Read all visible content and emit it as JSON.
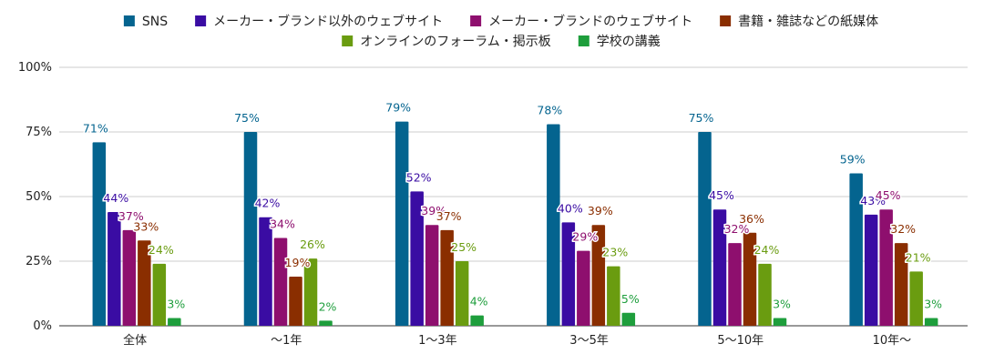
{
  "chart_data": {
    "type": "bar",
    "categories": [
      "全体",
      "〜1年",
      "1〜3年",
      "3〜5年",
      "5〜10年",
      "10年〜"
    ],
    "series": [
      {
        "name": "SNS",
        "color": "#04648f",
        "values": [
          71,
          75,
          79,
          78,
          75,
          59
        ]
      },
      {
        "name": "メーカー・ブランド以外のウェブサイト",
        "color": "#3a0ca3",
        "values": [
          44,
          42,
          52,
          40,
          45,
          43
        ]
      },
      {
        "name": "メーカー・ブランドのウェブサイト",
        "color": "#8e0f6e",
        "values": [
          37,
          34,
          39,
          29,
          32,
          45
        ]
      },
      {
        "name": "書籍・雑誌などの紙媒体",
        "color": "#8a2e00",
        "values": [
          33,
          19,
          37,
          39,
          36,
          32
        ]
      },
      {
        "name": "オンラインのフォーラム・掲示板",
        "color": "#6a9c10",
        "values": [
          24,
          26,
          25,
          23,
          24,
          21
        ]
      },
      {
        "name": "学校の講義",
        "color": "#1e9e3c",
        "values": [
          3,
          2,
          4,
          5,
          3,
          3
        ]
      }
    ],
    "ylim": [
      0,
      100
    ],
    "yticks": [
      "0%",
      "25%",
      "50%",
      "75%",
      "100%"
    ],
    "value_suffix": "%",
    "grid": true,
    "legend": "top"
  }
}
